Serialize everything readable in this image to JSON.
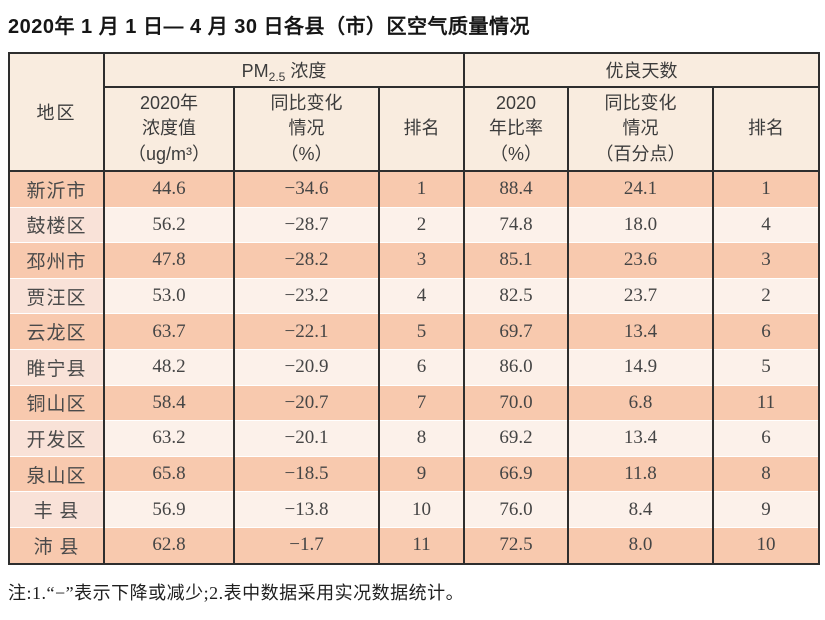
{
  "title": "2020年 1 月 1 日— 4 月 30 日各县（市）区空气质量情况",
  "note": "注:1.“−”表示下降或减少;2.表中数据采用实况数据统计。",
  "table": {
    "header": {
      "region": "地区",
      "pm25_group": {
        "prefix": "PM",
        "sub": "2.5",
        "suffix": " 浓度"
      },
      "good_group": "优良天数",
      "sub_headers": {
        "pm_value": "2020年\n浓度值\n（ug/m³）",
        "pm_change": "同比变化\n情况\n（%）",
        "pm_rank": "排名",
        "good_rate": "2020\n年比率\n（%）",
        "good_change": "同比变化\n情况\n（百分点）",
        "good_rank": "排名"
      }
    },
    "rows": [
      {
        "region": "新沂市",
        "pm_value": "44.6",
        "pm_change": "−34.6",
        "pm_rank": "1",
        "good_rate": "88.4",
        "good_change": "24.1",
        "good_rank": "1"
      },
      {
        "region": "鼓楼区",
        "pm_value": "56.2",
        "pm_change": "−28.7",
        "pm_rank": "2",
        "good_rate": "74.8",
        "good_change": "18.0",
        "good_rank": "4"
      },
      {
        "region": "邳州市",
        "pm_value": "47.8",
        "pm_change": "−28.2",
        "pm_rank": "3",
        "good_rate": "85.1",
        "good_change": "23.6",
        "good_rank": "3"
      },
      {
        "region": "贾汪区",
        "pm_value": "53.0",
        "pm_change": "−23.2",
        "pm_rank": "4",
        "good_rate": "82.5",
        "good_change": "23.7",
        "good_rank": "2"
      },
      {
        "region": "云龙区",
        "pm_value": "63.7",
        "pm_change": "−22.1",
        "pm_rank": "5",
        "good_rate": "69.7",
        "good_change": "13.4",
        "good_rank": "6"
      },
      {
        "region": "睢宁县",
        "pm_value": "48.2",
        "pm_change": "−20.9",
        "pm_rank": "6",
        "good_rate": "86.0",
        "good_change": "14.9",
        "good_rank": "5"
      },
      {
        "region": "铜山区",
        "pm_value": "58.4",
        "pm_change": "−20.7",
        "pm_rank": "7",
        "good_rate": "70.0",
        "good_change": "6.8",
        "good_rank": "11"
      },
      {
        "region": "开发区",
        "pm_value": "63.2",
        "pm_change": "−20.1",
        "pm_rank": "8",
        "good_rate": "69.2",
        "good_change": "13.4",
        "good_rank": "6"
      },
      {
        "region": "泉山区",
        "pm_value": "65.8",
        "pm_change": "−18.5",
        "pm_rank": "9",
        "good_rate": "66.9",
        "good_change": "11.8",
        "good_rank": "8"
      },
      {
        "region": "丰 县",
        "pm_value": "56.9",
        "pm_change": "−13.8",
        "pm_rank": "10",
        "good_rate": "76.0",
        "good_change": "8.4",
        "good_rank": "9"
      },
      {
        "region": "沛 县",
        "pm_value": "62.8",
        "pm_change": "−1.7",
        "pm_rank": "11",
        "good_rate": "72.5",
        "good_change": "8.0",
        "good_rank": "10"
      }
    ]
  },
  "colors": {
    "row_salmon": "#f8c9ae",
    "row_light": "#fcf1ea",
    "row_light_region": "#f9e2d8",
    "header_bg": "#f9ecdf",
    "border": "#2e2e2e"
  }
}
